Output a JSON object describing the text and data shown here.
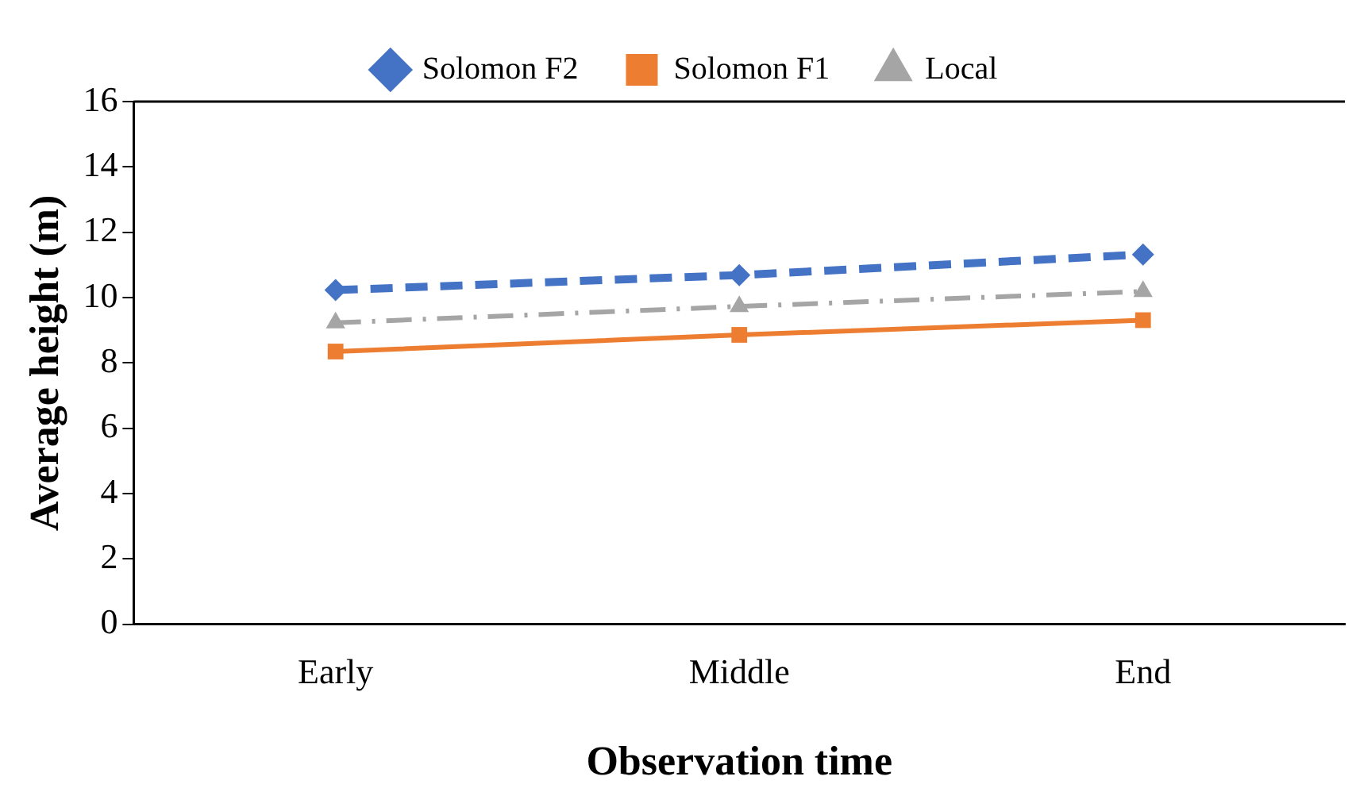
{
  "chart_data": {
    "type": "line",
    "xlabel": "Observation time",
    "ylabel": "Average height (m)",
    "categories": [
      "Early",
      "Middle",
      "End"
    ],
    "series": [
      {
        "name": "Solomon F2",
        "color": "#4472c4",
        "values": [
          10.23,
          10.69,
          11.32
        ],
        "marker": "diamond",
        "line_style": "dashed"
      },
      {
        "name": "Solomon F1",
        "color": "#ed7d31",
        "values": [
          8.35,
          8.86,
          9.31
        ],
        "marker": "square",
        "line_style": "solid"
      },
      {
        "name": "Local",
        "color": "#a5a5a5",
        "values": [
          9.23,
          9.73,
          10.19
        ],
        "marker": "triangle",
        "line_style": "dashdot"
      }
    ],
    "ylim": [
      0,
      16
    ],
    "yticks": [
      0,
      2,
      4,
      6,
      8,
      10,
      12,
      14,
      16
    ],
    "grid": false,
    "legend": "top"
  }
}
